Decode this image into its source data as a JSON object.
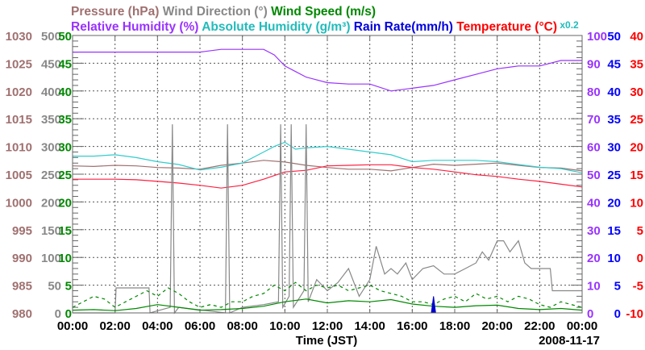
{
  "chart_data": {
    "type": "line",
    "title_rows": [
      [
        {
          "text": "Pressure (hPa)",
          "color": "#a07070"
        },
        {
          "text": "Wind Direction (°)",
          "color": "#888888"
        },
        {
          "text": "Wind Speed (m/s)",
          "color": "#008800"
        }
      ],
      [
        {
          "text": "Relative Humidity (%)",
          "color": "#9933ff"
        },
        {
          "text": "Absolute Humidity (g/m³)",
          "color": "#22bbbb"
        },
        {
          "text": "Rain Rate(mm/h)",
          "color": "#0000dd"
        },
        {
          "text": "Temperature (°C)",
          "color": "#ff0000"
        },
        {
          "text": "x0.2",
          "color": "#22bbbb"
        }
      ]
    ],
    "xlabel": "Time (JST)",
    "date": "2008-11-17",
    "x_ticks": [
      "00:00",
      "02:00",
      "04:00",
      "06:00",
      "08:00",
      "10:00",
      "12:00",
      "14:00",
      "16:00",
      "18:00",
      "20:00",
      "22:00",
      "00:00"
    ],
    "xlim": [
      0,
      24
    ],
    "axes": {
      "pressure": {
        "ylim": [
          980,
          1030
        ],
        "ticks": [
          "980",
          "985",
          "990",
          "995",
          "1000",
          "1005",
          "1010",
          "1015",
          "1020",
          "1025",
          "1030"
        ],
        "color": "#a07070"
      },
      "wind_direction": {
        "ylim": [
          0,
          500
        ],
        "ticks": [
          "0",
          "50",
          "100",
          "150",
          "200",
          "250",
          "300",
          "350",
          "400",
          "450",
          "500"
        ],
        "color": "#888888"
      },
      "wind_speed": {
        "ylim": [
          0,
          50
        ],
        "ticks": [
          "0",
          "5",
          "10",
          "15",
          "20",
          "25",
          "30",
          "35",
          "40",
          "45",
          "50"
        ],
        "color": "#008800"
      },
      "relative_humidity": {
        "ylim": [
          0,
          100
        ],
        "ticks": [
          "0",
          "10",
          "20",
          "30",
          "40",
          "50",
          "60",
          "70",
          "80",
          "90",
          "100"
        ],
        "color": "#9933ff"
      },
      "rain_rate": {
        "ylim": [
          0,
          50
        ],
        "ticks": [
          "0",
          "5",
          "10",
          "15",
          "20",
          "25",
          "30",
          "35",
          "40",
          "45",
          "50"
        ],
        "color": "#0000ff"
      },
      "temperature": {
        "ylim": [
          -10,
          40
        ],
        "ticks": [
          "-10",
          "-5",
          "0",
          "5",
          "10",
          "15",
          "20",
          "25",
          "30",
          "35",
          "40"
        ],
        "color": "#ff0000"
      }
    },
    "series": [
      {
        "name": "Pressure",
        "axis": "pressure",
        "color": "#a07070",
        "x": [
          0,
          1,
          2,
          3,
          4,
          5,
          6,
          7,
          8,
          9,
          10,
          11,
          12,
          13,
          14,
          15,
          16,
          17,
          18,
          19,
          20,
          21,
          22,
          23,
          24
        ],
        "values": [
          1006.5,
          1006.4,
          1006.6,
          1006.5,
          1006.2,
          1006.1,
          1005.9,
          1006.6,
          1007.0,
          1007.5,
          1007.2,
          1006.6,
          1006.2,
          1005.9,
          1005.9,
          1005.6,
          1006.2,
          1006.8,
          1006.6,
          1006.8,
          1007.0,
          1006.6,
          1006.2,
          1006.1,
          1005.6
        ]
      },
      {
        "name": "Absolute Humidity x0.2",
        "axis": "relative_humidity",
        "scale": 0.2,
        "color": "#33cccc",
        "x": [
          0,
          1,
          2,
          3,
          4,
          5,
          6,
          7,
          8,
          9,
          9.5,
          10,
          10.5,
          11,
          12,
          13,
          14,
          15,
          16,
          17,
          18,
          19,
          20,
          21,
          22,
          23,
          24
        ],
        "values": [
          11.3,
          11.3,
          11.4,
          11.2,
          10.9,
          10.7,
          10.3,
          10.5,
          10.8,
          11.6,
          12.0,
          12.3,
          11.8,
          11.9,
          12.0,
          11.8,
          11.6,
          11.4,
          10.9,
          11.0,
          11.0,
          11.0,
          10.9,
          10.7,
          10.5,
          10.4,
          10.1
        ]
      },
      {
        "name": "Temperature",
        "axis": "temperature",
        "color": "#ff2040",
        "x": [
          0,
          1,
          2,
          3,
          4,
          5,
          6,
          7,
          8,
          9,
          10,
          11,
          12,
          13,
          14,
          15,
          16,
          17,
          18,
          19,
          20,
          21,
          22,
          23,
          24
        ],
        "values": [
          14.1,
          14.1,
          14.1,
          14.0,
          13.7,
          13.4,
          13.0,
          12.5,
          13.0,
          14.1,
          15.4,
          15.7,
          16.5,
          16.6,
          16.7,
          16.7,
          16.2,
          15.9,
          15.4,
          14.9,
          14.6,
          14.1,
          13.7,
          13.2,
          12.7
        ]
      },
      {
        "name": "Relative Humidity",
        "axis": "relative_humidity",
        "color": "#9933ff",
        "x": [
          0,
          1,
          2,
          3,
          4,
          5,
          6,
          7,
          8,
          9,
          9.5,
          10,
          10.5,
          11,
          12,
          13,
          14,
          15,
          16,
          17,
          18,
          19,
          20,
          21,
          22,
          23,
          24
        ],
        "values": [
          94,
          94,
          94,
          94,
          94,
          94,
          94,
          95,
          95,
          95,
          93,
          89,
          87,
          85,
          83,
          82.5,
          82.5,
          80,
          81,
          82,
          84,
          86,
          88,
          89,
          89,
          91,
          91
        ]
      },
      {
        "name": "Wind Direction",
        "axis": "wind_direction",
        "color": "#888888",
        "x": [
          0,
          2,
          2.05,
          3.6,
          3.65,
          4.6,
          4.7,
          4.8,
          5,
          7.2,
          7.3,
          7.4,
          8,
          9,
          9.7,
          9.8,
          9.9,
          10.2,
          10.3,
          10.4,
          10.9,
          11,
          11.1,
          11.5,
          12,
          12.5,
          13,
          13.5,
          14,
          14.3,
          14.7,
          15,
          15.3,
          15.7,
          16,
          16.5,
          17,
          17.5,
          18,
          18.5,
          19,
          19.3,
          19.6,
          20,
          20.3,
          20.6,
          21,
          21.3,
          21.6,
          22,
          22.5,
          22.6,
          24
        ],
        "values": [
          0,
          0,
          45,
          45,
          0,
          10,
          340,
          0,
          10,
          0,
          340,
          0,
          10,
          15,
          20,
          340,
          10,
          30,
          340,
          10,
          40,
          340,
          20,
          60,
          40,
          55,
          80,
          30,
          60,
          120,
          70,
          80,
          70,
          90,
          60,
          80,
          85,
          70,
          70,
          80,
          90,
          110,
          95,
          130,
          130,
          110,
          130,
          90,
          80,
          80,
          80,
          40,
          40
        ]
      },
      {
        "name": "Wind Speed (avg)",
        "axis": "wind_speed",
        "color": "#008800",
        "dash": false,
        "x": [
          0,
          1,
          2,
          3,
          4,
          5,
          6,
          7,
          8,
          9,
          10,
          11,
          12,
          13,
          14,
          15,
          16,
          17,
          18,
          19,
          20,
          21,
          22,
          23,
          24
        ],
        "values": [
          0.5,
          0.6,
          0.4,
          0.8,
          1.5,
          1.0,
          0.5,
          0.6,
          0.8,
          1.2,
          2.0,
          2.5,
          1.8,
          2.2,
          2.0,
          2.4,
          1.6,
          1.2,
          1.0,
          1.3,
          1.4,
          0.8,
          0.6,
          0.8,
          0.5
        ]
      },
      {
        "name": "Wind Speed (gust)",
        "axis": "wind_speed",
        "color": "#008800",
        "dash": true,
        "x": [
          0,
          0.5,
          1,
          1.5,
          2,
          2.5,
          3,
          3.5,
          4,
          4.5,
          5,
          5.5,
          6,
          6.5,
          7,
          7.5,
          8,
          8.5,
          9,
          9.5,
          10,
          10.5,
          11,
          11.5,
          12,
          12.5,
          13,
          13.5,
          14,
          14.5,
          15,
          15.5,
          16,
          16.5,
          17,
          17.5,
          18,
          18.5,
          19,
          19.5,
          20,
          20.5,
          21,
          21.5,
          22,
          22.5,
          23,
          23.5,
          24
        ],
        "values": [
          1,
          2,
          3,
          2.5,
          1,
          2,
          3,
          4,
          3,
          4.5,
          3.5,
          2,
          1,
          1.5,
          1,
          2,
          2,
          3,
          3.5,
          5,
          4,
          5.5,
          4,
          5,
          4.5,
          5,
          4,
          4.5,
          5,
          4,
          3.5,
          3,
          2,
          2,
          1.5,
          2.5,
          3,
          2,
          3.5,
          2.5,
          3,
          2,
          3,
          2.5,
          1.5,
          1,
          2,
          1.5,
          1
        ]
      },
      {
        "name": "Rain Rate",
        "axis": "rain_rate",
        "color": "#0000cc",
        "area": true,
        "x": [
          0,
          16.9,
          17,
          17.1,
          24
        ],
        "values": [
          0,
          0,
          3,
          0,
          0
        ]
      }
    ]
  }
}
